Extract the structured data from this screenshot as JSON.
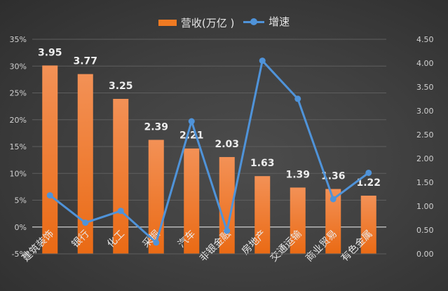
{
  "chart_data": {
    "type": "bar",
    "title": "",
    "categories": [
      "建筑装饰",
      "银行",
      "化工",
      "采掘",
      "汽车",
      "非银金融",
      "房地产",
      "交通运输",
      "商业贸易",
      "有色金属"
    ],
    "series": [
      {
        "name": "营收(万亿）",
        "type": "bar",
        "axis": "right",
        "color": "#f07a22",
        "values": [
          3.95,
          3.77,
          3.25,
          2.39,
          2.21,
          2.03,
          1.63,
          1.39,
          1.36,
          1.22
        ]
      },
      {
        "name": "增速",
        "type": "line",
        "axis": "left",
        "color": "#4f93d9",
        "values": [
          5.9,
          0.8,
          3.0,
          -2.9,
          19.7,
          -0.7,
          31.0,
          23.9,
          5.2,
          10.1
        ]
      }
    ],
    "left_axis": {
      "ticks": [
        "-5%",
        "0%",
        "5%",
        "10%",
        "15%",
        "20%",
        "25%",
        "30%",
        "35%"
      ],
      "range": [
        -5,
        35
      ]
    },
    "right_axis": {
      "ticks": [
        "0.00",
        "0.50",
        "1.00",
        "1.50",
        "2.00",
        "2.50",
        "3.00",
        "3.50",
        "4.00",
        "4.50"
      ],
      "range": [
        0,
        4.5
      ]
    },
    "xlabel": "",
    "ylabel": "",
    "grid": true,
    "legend_position": "top",
    "data_labels": [
      "3.95",
      "3.77",
      "3.25",
      "2.39",
      "2.21",
      "2.03",
      "1.63",
      "1.39",
      "1.36",
      "1.22"
    ]
  },
  "legend": {
    "bar_label": "营收(万亿 )",
    "line_label": "增速"
  },
  "colors": {
    "bar": "#f07a22",
    "bar_top": "#f39156",
    "line": "#4f93d9",
    "grid": "#5e5e5e",
    "zero_line": "#cfcfcf"
  }
}
